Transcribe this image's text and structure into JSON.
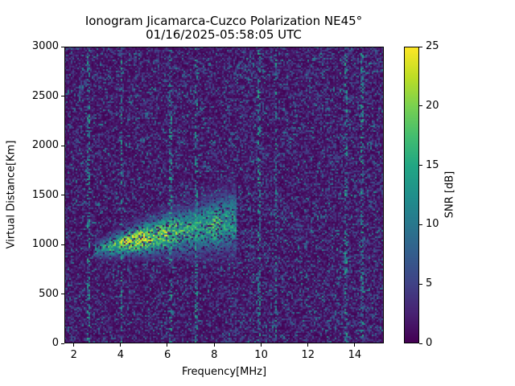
{
  "title": {
    "line1": "Ionogram Jicamarca-Cuzco Polarization NE45°",
    "line2": "01/16/2025-05:58:05 UTC"
  },
  "axes": {
    "xlabel": "Frequency[MHz]",
    "ylabel": "Virtual Distance[Km]",
    "xticks": [
      "2",
      "4",
      "6",
      "8",
      "10",
      "12",
      "14"
    ],
    "yticks": [
      "0",
      "500",
      "1000",
      "1500",
      "2000",
      "2500",
      "3000"
    ]
  },
  "colorbar": {
    "label": "SNR [dB]",
    "ticks": [
      "0",
      "5",
      "10",
      "15",
      "20",
      "25"
    ],
    "colormap": "viridis"
  },
  "chart_data": {
    "type": "heatmap",
    "title": "Ionogram Jicamarca-Cuzco Polarization NE45° — 01/16/2025-05:58:05 UTC",
    "xlabel": "Frequency[MHz]",
    "ylabel": "Virtual Distance[Km]",
    "xlim": [
      1.6,
      15.25
    ],
    "ylim": [
      0,
      3000
    ],
    "xticks": [
      2,
      4,
      6,
      8,
      10,
      12,
      14
    ],
    "yticks": [
      0,
      500,
      1000,
      1500,
      2000,
      2500,
      3000
    ],
    "colorbar": {
      "label": "SNR [dB]",
      "range": [
        0,
        25
      ],
      "ticks": [
        0,
        5,
        10,
        15,
        20,
        25
      ],
      "colormap": "viridis"
    },
    "background_snr_db": [
      0,
      5
    ],
    "echo_trace": {
      "description": "Oblique ionospheric echo trace rising with frequency",
      "points": [
        {
          "freq_mhz": 3.0,
          "distance_km": 960,
          "snr_db": 12
        },
        {
          "freq_mhz": 3.5,
          "distance_km": 990,
          "snr_db": 18
        },
        {
          "freq_mhz": 4.0,
          "distance_km": 1020,
          "snr_db": 22
        },
        {
          "freq_mhz": 4.5,
          "distance_km": 1050,
          "snr_db": 25
        },
        {
          "freq_mhz": 5.0,
          "distance_km": 1070,
          "snr_db": 24
        },
        {
          "freq_mhz": 5.5,
          "distance_km": 1100,
          "snr_db": 20
        },
        {
          "freq_mhz": 6.0,
          "distance_km": 1120,
          "snr_db": 22
        },
        {
          "freq_mhz": 6.5,
          "distance_km": 1140,
          "snr_db": 18
        },
        {
          "freq_mhz": 7.0,
          "distance_km": 1160,
          "snr_db": 17
        },
        {
          "freq_mhz": 7.5,
          "distance_km": 1180,
          "snr_db": 16
        },
        {
          "freq_mhz": 8.0,
          "distance_km": 1200,
          "snr_db": 18
        },
        {
          "freq_mhz": 8.5,
          "distance_km": 1230,
          "snr_db": 15
        }
      ]
    },
    "interference_lines_mhz": [
      2.6,
      4.0,
      6.1,
      7.2,
      9.9,
      10.6,
      13.6,
      14.3
    ]
  }
}
